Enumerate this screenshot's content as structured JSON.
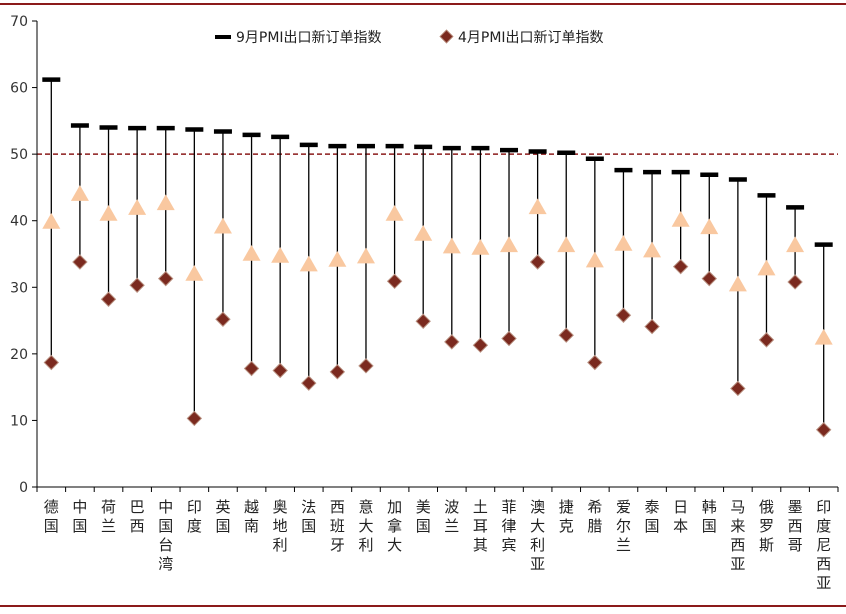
{
  "chart_data": {
    "type": "dot-range",
    "title": "",
    "ylim": [
      0,
      70
    ],
    "yticks": [
      0,
      10,
      20,
      30,
      40,
      50,
      60,
      70
    ],
    "reference_line": 50,
    "categories": [
      "德国",
      "中国",
      "荷兰",
      "巴西",
      "中国台湾",
      "印度",
      "英国",
      "越南",
      "奥地利",
      "法国",
      "西班牙",
      "意大利",
      "加拿大",
      "美国",
      "波兰",
      "土耳其",
      "菲律宾",
      "澳大利亚",
      "捷克",
      "希腊",
      "爱尔兰",
      "泰国",
      "日本",
      "韩国",
      "马来西亚",
      "俄罗斯",
      "墨西哥",
      "印度尼西亚"
    ],
    "series": [
      {
        "name": "9月PMI出口新订单指数",
        "marker": "dash",
        "color": "#000000",
        "values": [
          61.2,
          54.3,
          54.0,
          53.9,
          53.9,
          53.7,
          53.4,
          52.9,
          52.6,
          51.4,
          51.2,
          51.2,
          51.2,
          51.1,
          50.9,
          50.9,
          50.6,
          50.4,
          50.2,
          49.3,
          47.6,
          47.3,
          47.3,
          46.9,
          46.2,
          43.8,
          42.0,
          36.4
        ]
      },
      {
        "name": "",
        "marker": "triangle",
        "color": "#f9c8a0",
        "values": [
          39.8,
          44.0,
          41.0,
          41.9,
          42.6,
          32.0,
          39.1,
          35.0,
          34.7,
          33.4,
          34.1,
          34.6,
          41.0,
          38.0,
          36.1,
          35.9,
          36.3,
          42.0,
          36.3,
          34.0,
          36.5,
          35.5,
          40.1,
          39.0,
          30.4,
          32.8,
          36.3,
          22.4
        ]
      },
      {
        "name": "4月PMI出口新订单指数",
        "marker": "diamond",
        "color": "#7b2a1f",
        "values": [
          18.7,
          33.8,
          28.2,
          30.3,
          31.3,
          10.3,
          25.2,
          17.8,
          17.5,
          15.6,
          17.3,
          18.2,
          30.9,
          24.9,
          21.8,
          21.3,
          22.3,
          33.8,
          22.8,
          18.7,
          25.8,
          24.1,
          33.1,
          31.3,
          14.8,
          22.1,
          30.8,
          8.6
        ]
      }
    ],
    "legend": "top-center"
  }
}
